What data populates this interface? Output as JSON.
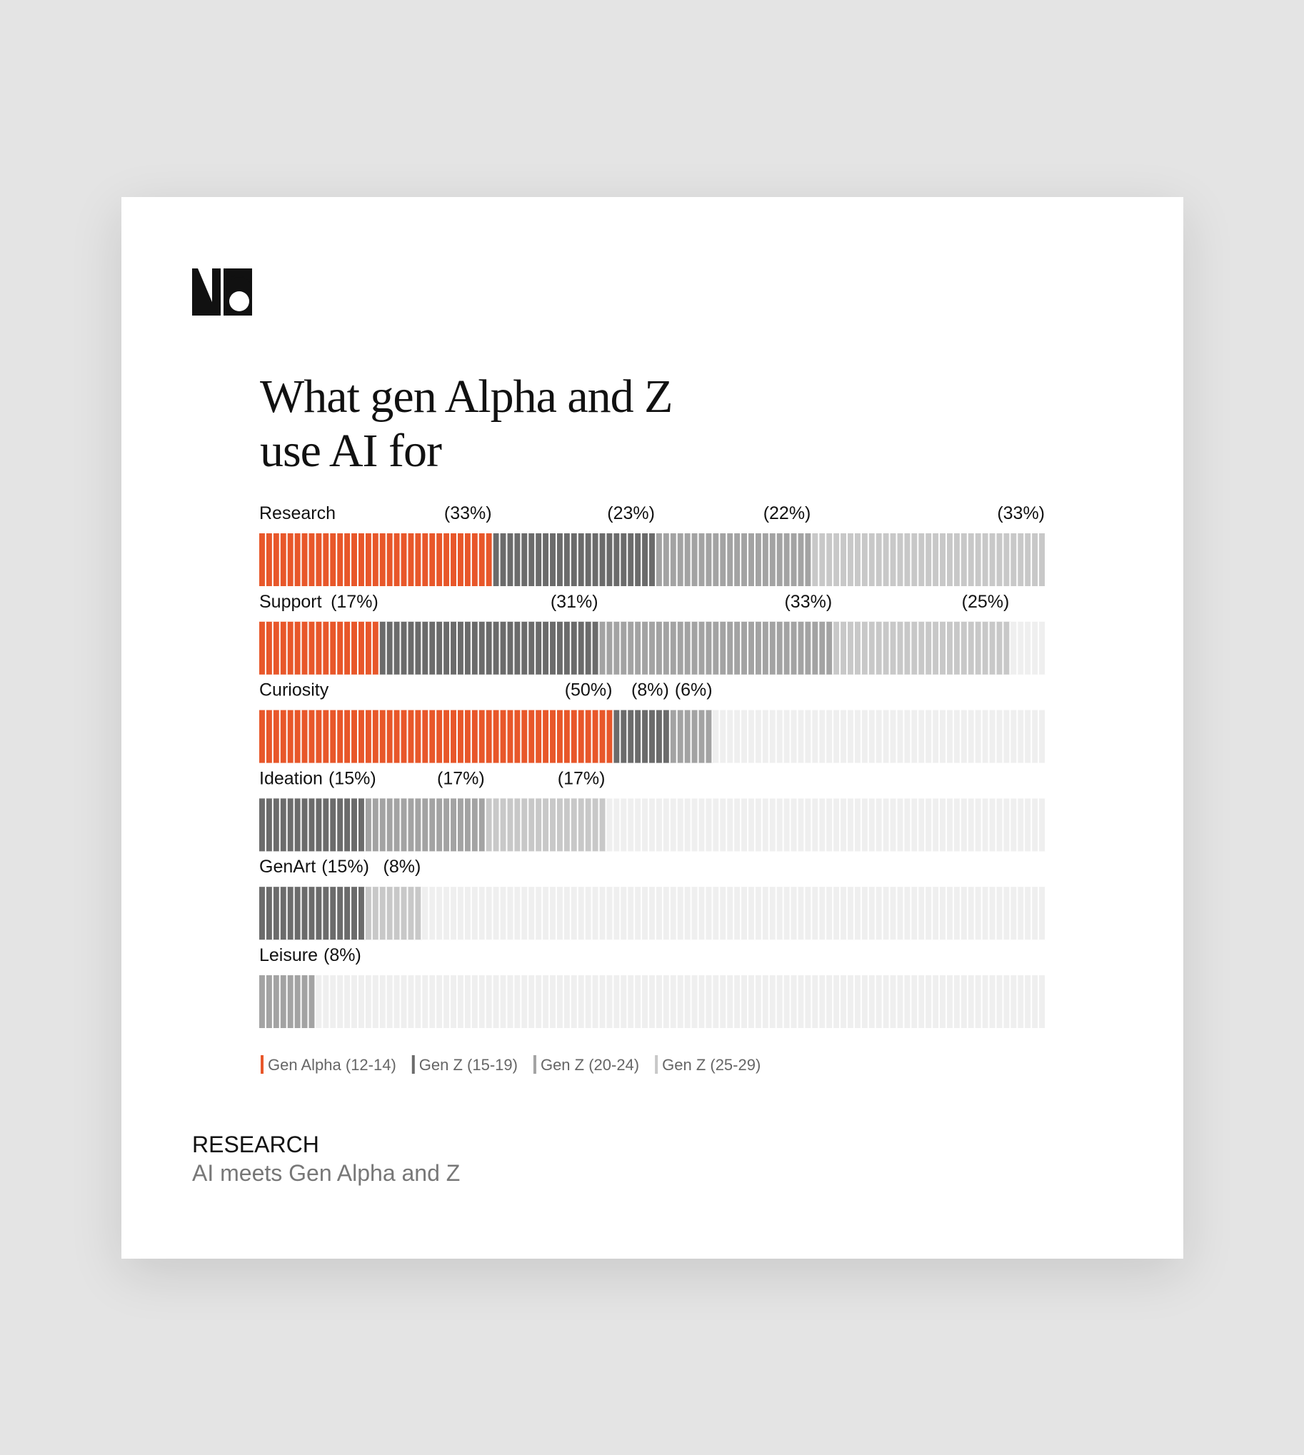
{
  "chart_data": {
    "type": "bar",
    "orientation": "horizontal",
    "stacked": true,
    "title": "What gen Alpha and Z use AI for",
    "categories": [
      "Research",
      "Support",
      "Curiosity",
      "Ideation",
      "GenArt",
      "Leisure"
    ],
    "series": [
      {
        "name": "Gen Alpha (12-14)",
        "color": "#e8572a",
        "values": [
          33,
          17,
          50,
          null,
          null,
          null
        ],
        "value_labels": [
          "(33%)",
          "(17%)",
          "(50%)",
          null,
          null,
          null
        ]
      },
      {
        "name": "Gen Z (15-19)",
        "color": "#6b6b6b",
        "values": [
          23,
          31,
          8,
          15,
          15,
          null
        ],
        "value_labels": [
          "(23%)",
          "(31%)",
          "(8%)",
          "(15%)",
          "(15%)",
          null
        ]
      },
      {
        "name": "Gen Z (20-24)",
        "color": "#a3a3a3",
        "values": [
          22,
          33,
          6,
          17,
          null,
          8
        ],
        "value_labels": [
          "(22%)",
          "(33%)",
          "(6%)",
          "(17%)",
          null,
          "(8%)"
        ]
      },
      {
        "name": "Gen Z (25-29)",
        "color": "#c8c8c8",
        "values": [
          33,
          25,
          null,
          17,
          8,
          null
        ],
        "value_labels": [
          "(33%)",
          "(25%)",
          null,
          "(17%)",
          "(8%)",
          null
        ]
      }
    ],
    "xlim": [
      0,
      111
    ],
    "track_color": "#efefef"
  },
  "footer": {
    "label": "RESEARCH",
    "subtitle": "AI meets Gen Alpha and Z"
  }
}
